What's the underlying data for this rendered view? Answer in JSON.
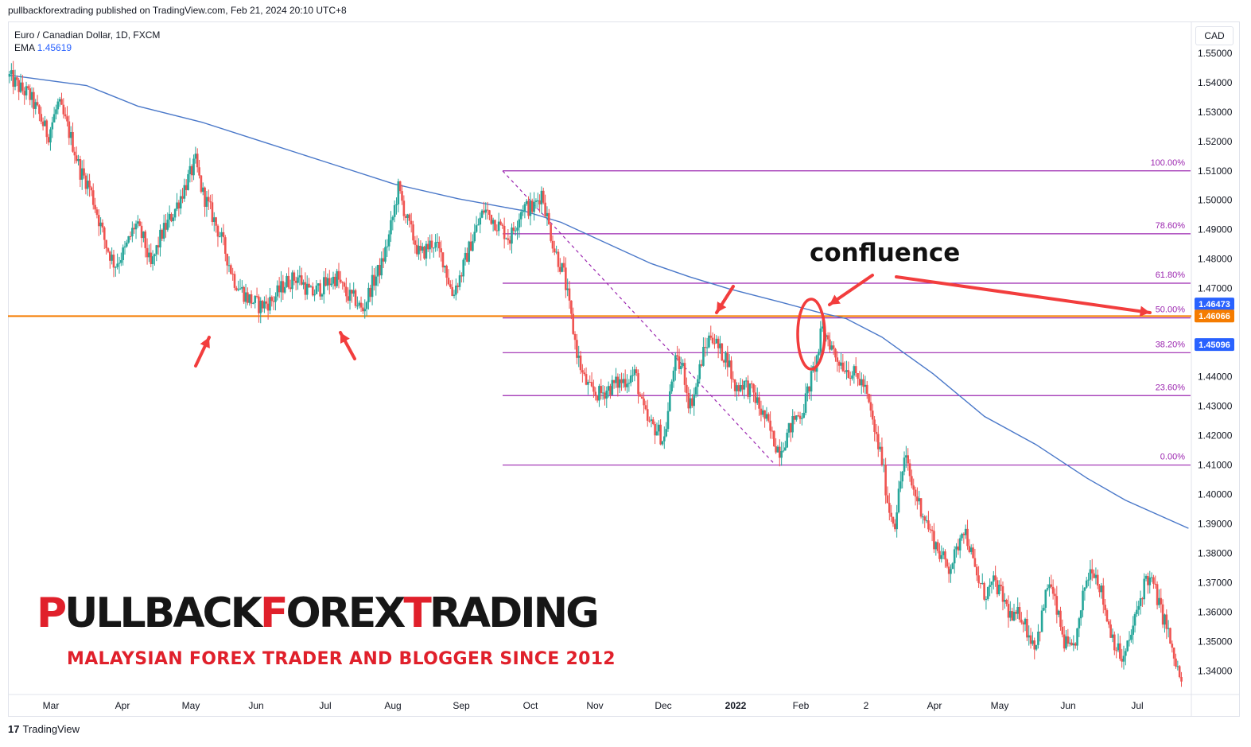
{
  "header": {
    "published_line": "pullbackforextrading published on TradingView.com, Feb 21, 2024 20:10 UTC+8"
  },
  "legend": {
    "symbol": "Euro / Canadian Dollar, 1D, FXCM",
    "ema_label": "EMA",
    "ema_value": "1.45619"
  },
  "currency": "CAD",
  "footer": {
    "brand": "TradingView"
  },
  "watermark": {
    "title_parts": [
      "P",
      "ULLBACK",
      "F",
      "OREX",
      "T",
      "RADING"
    ],
    "subtitle": "MALAYSIAN FOREX TRADER AND BLOGGER SINCE 2012"
  },
  "annotation": {
    "confluence": "confluence"
  },
  "colors": {
    "up": "#26a69a",
    "down": "#ef5350",
    "ema": "#4a78c9",
    "fib": "#9c27b0",
    "support": "#f57c00",
    "arrow": "#f23d3d",
    "axis_text": "#131722"
  },
  "chart_data": {
    "type": "candlestick",
    "instrument": "EUR/CAD",
    "timeframe": "1D",
    "ylim": [
      1.332,
      1.5605
    ],
    "y_ticks": [
      "1.55000",
      "1.54000",
      "1.53000",
      "1.52000",
      "1.51000",
      "1.50000",
      "1.49000",
      "1.48000",
      "1.47000",
      "1.46000",
      "1.45000",
      "1.44000",
      "1.43000",
      "1.42000",
      "1.41000",
      "1.40000",
      "1.39000",
      "1.38000",
      "1.37000",
      "1.36000",
      "1.35000",
      "1.34000"
    ],
    "x_tick_labels": [
      "Mar",
      "Apr",
      "May",
      "Jun",
      "Jul",
      "Aug",
      "Sep",
      "Oct",
      "Nov",
      "Dec",
      "2022",
      "Feb",
      "2",
      "Apr",
      "May",
      "Jun",
      "Jul"
    ],
    "price_path": [
      [
        0,
        1.542
      ],
      [
        8,
        1.538
      ],
      [
        15,
        1.536
      ],
      [
        22,
        1.53
      ],
      [
        30,
        1.522
      ],
      [
        38,
        1.533
      ],
      [
        45,
        1.525
      ],
      [
        50,
        1.518
      ],
      [
        55,
        1.51
      ],
      [
        62,
        1.505
      ],
      [
        68,
        1.496
      ],
      [
        75,
        1.485
      ],
      [
        82,
        1.478
      ],
      [
        90,
        1.483
      ],
      [
        98,
        1.492
      ],
      [
        105,
        1.486
      ],
      [
        110,
        1.477
      ],
      [
        118,
        1.488
      ],
      [
        128,
        1.496
      ],
      [
        138,
        1.506
      ],
      [
        145,
        1.513
      ],
      [
        150,
        1.503
      ],
      [
        157,
        1.496
      ],
      [
        165,
        1.487
      ],
      [
        175,
        1.473
      ],
      [
        185,
        1.467
      ],
      [
        195,
        1.464
      ],
      [
        205,
        1.466
      ],
      [
        215,
        1.472
      ],
      [
        225,
        1.474
      ],
      [
        235,
        1.468
      ],
      [
        245,
        1.471
      ],
      [
        255,
        1.474
      ],
      [
        262,
        1.468
      ],
      [
        270,
        1.466
      ],
      [
        275,
        1.462
      ],
      [
        282,
        1.471
      ],
      [
        290,
        1.478
      ],
      [
        296,
        1.488
      ],
      [
        303,
        1.504
      ],
      [
        310,
        1.493
      ],
      [
        320,
        1.481
      ],
      [
        330,
        1.486
      ],
      [
        338,
        1.48
      ],
      [
        345,
        1.468
      ],
      [
        352,
        1.475
      ],
      [
        360,
        1.486
      ],
      [
        370,
        1.497
      ],
      [
        380,
        1.492
      ],
      [
        390,
        1.487
      ],
      [
        400,
        1.498
      ],
      [
        408,
        1.497
      ],
      [
        415,
        1.503
      ],
      [
        420,
        1.492
      ],
      [
        425,
        1.483
      ],
      [
        432,
        1.475
      ],
      [
        437,
        1.462
      ],
      [
        442,
        1.449
      ],
      [
        447,
        1.44
      ],
      [
        453,
        1.435
      ],
      [
        460,
        1.434
      ],
      [
        470,
        1.437
      ],
      [
        480,
        1.439
      ],
      [
        488,
        1.441
      ],
      [
        493,
        1.43
      ],
      [
        498,
        1.424
      ],
      [
        505,
        1.422
      ],
      [
        510,
        1.418
      ],
      [
        513,
        1.427
      ],
      [
        518,
        1.445
      ],
      [
        525,
        1.443
      ],
      [
        530,
        1.43
      ],
      [
        535,
        1.436
      ],
      [
        540,
        1.447
      ],
      [
        547,
        1.455
      ],
      [
        553,
        1.449
      ],
      [
        560,
        1.446
      ],
      [
        565,
        1.436
      ],
      [
        572,
        1.438
      ],
      [
        580,
        1.434
      ],
      [
        586,
        1.428
      ],
      [
        590,
        1.425
      ],
      [
        595,
        1.419
      ],
      [
        600,
        1.415
      ],
      [
        606,
        1.42
      ],
      [
        612,
        1.426
      ],
      [
        618,
        1.428
      ],
      [
        624,
        1.438
      ],
      [
        630,
        1.447
      ],
      [
        633,
        1.456
      ],
      [
        638,
        1.453
      ],
      [
        644,
        1.447
      ],
      [
        652,
        1.443
      ],
      [
        660,
        1.44
      ],
      [
        666,
        1.437
      ],
      [
        670,
        1.43
      ],
      [
        675,
        1.42
      ],
      [
        680,
        1.412
      ],
      [
        685,
        1.396
      ],
      [
        690,
        1.39
      ],
      [
        694,
        1.403
      ],
      [
        698,
        1.413
      ],
      [
        704,
        1.402
      ],
      [
        710,
        1.396
      ],
      [
        718,
        1.387
      ],
      [
        725,
        1.38
      ],
      [
        732,
        1.375
      ],
      [
        738,
        1.38
      ],
      [
        743,
        1.39
      ],
      [
        748,
        1.383
      ],
      [
        753,
        1.373
      ],
      [
        760,
        1.366
      ],
      [
        768,
        1.37
      ],
      [
        775,
        1.364
      ],
      [
        782,
        1.357
      ],
      [
        788,
        1.36
      ],
      [
        795,
        1.352
      ],
      [
        800,
        1.349
      ],
      [
        805,
        1.359
      ],
      [
        810,
        1.371
      ],
      [
        816,
        1.361
      ],
      [
        822,
        1.35
      ],
      [
        828,
        1.346
      ],
      [
        834,
        1.356
      ],
      [
        838,
        1.369
      ],
      [
        844,
        1.376
      ],
      [
        850,
        1.369
      ],
      [
        856,
        1.357
      ],
      [
        862,
        1.349
      ],
      [
        868,
        1.343
      ],
      [
        874,
        1.352
      ],
      [
        880,
        1.362
      ],
      [
        886,
        1.372
      ],
      [
        892,
        1.369
      ],
      [
        897,
        1.361
      ],
      [
        903,
        1.354
      ],
      [
        906,
        1.346
      ],
      [
        911,
        1.34
      ],
      [
        914,
        1.334
      ]
    ],
    "ema_path": [
      [
        0,
        1.5425
      ],
      [
        60,
        1.539
      ],
      [
        100,
        1.532
      ],
      [
        150,
        1.5265
      ],
      [
        200,
        1.5195
      ],
      [
        250,
        1.5125
      ],
      [
        300,
        1.5055
      ],
      [
        350,
        1.5005
      ],
      [
        400,
        1.4965
      ],
      [
        430,
        1.4925
      ],
      [
        470,
        1.4845
      ],
      [
        500,
        1.4785
      ],
      [
        530,
        1.474
      ],
      [
        560,
        1.47
      ],
      [
        600,
        1.4655
      ],
      [
        630,
        1.462
      ],
      [
        652,
        1.4598
      ],
      [
        680,
        1.4535
      ],
      [
        720,
        1.441
      ],
      [
        760,
        1.4265
      ],
      [
        800,
        1.417
      ],
      [
        840,
        1.4055
      ],
      [
        870,
        1.398
      ],
      [
        919,
        1.3885
      ]
    ],
    "fibonacci": {
      "high": 1.51,
      "low": 1.41,
      "levels": [
        {
          "label": "100.00%",
          "price": 1.51
        },
        {
          "label": "78.60%",
          "price": 1.4886
        },
        {
          "label": "61.80%",
          "price": 1.4718
        },
        {
          "label": "50.00%",
          "price": 1.46
        },
        {
          "label": "38.20%",
          "price": 1.4482
        },
        {
          "label": "23.60%",
          "price": 1.4336
        },
        {
          "label": "0.00%",
          "price": 1.41
        }
      ]
    },
    "support_level": 1.4606,
    "price_labels": [
      {
        "value": "1.46473",
        "price": 1.46473,
        "color": "#2962ff"
      },
      {
        "value": "1.46066",
        "price": 1.46066,
        "color": "#f57c00"
      },
      {
        "value": "1.45096",
        "price": 1.45096,
        "color": "#2962ff"
      }
    ]
  }
}
